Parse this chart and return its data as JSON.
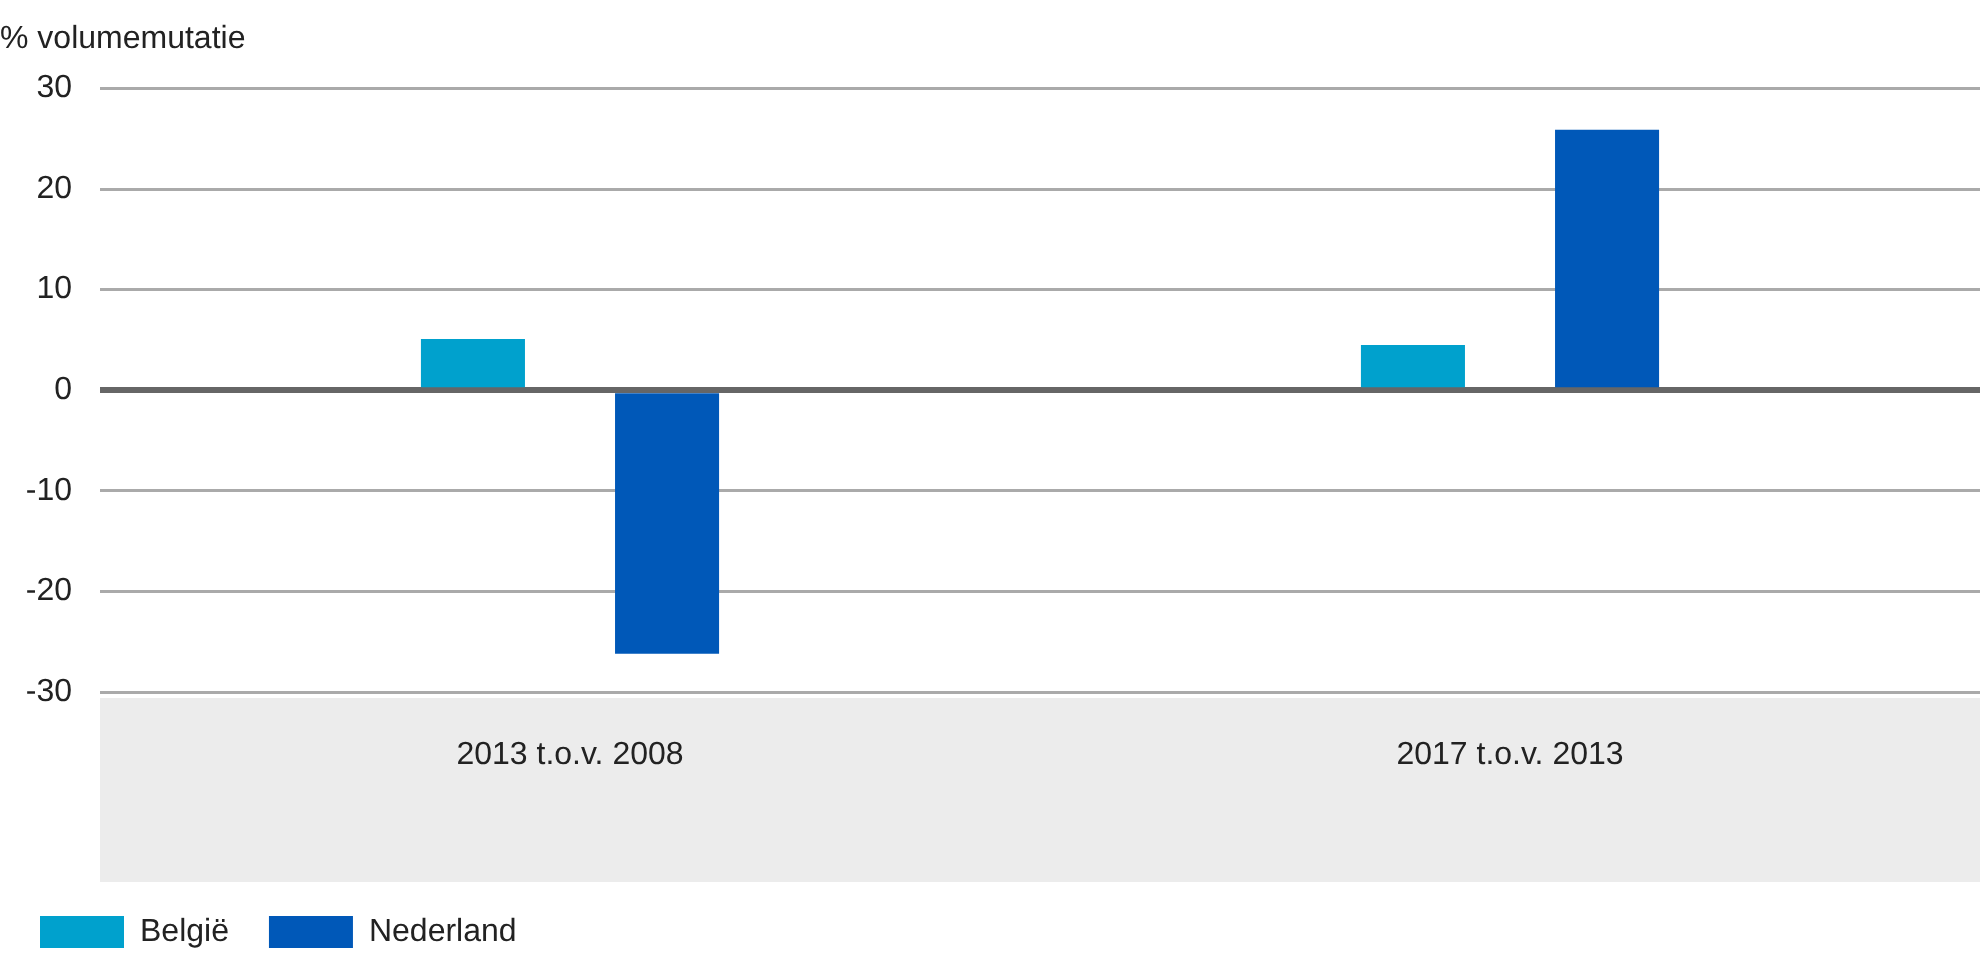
{
  "chart_data": {
    "type": "bar",
    "ylabel": "% volumemutatie",
    "categories": [
      "2013 t.o.v. 2008",
      "2017 t.o.v. 2013"
    ],
    "series": [
      {
        "name": "België",
        "color": "#00a1cd",
        "values": [
          5.1,
          4.5
        ]
      },
      {
        "name": "Nederland",
        "color": "#0058b8",
        "values": [
          -26.2,
          25.9
        ]
      }
    ],
    "ylim": [
      -30,
      30
    ],
    "yticks": [
      -30,
      -20,
      -10,
      0,
      10,
      20,
      30
    ],
    "grid": "y",
    "legend": "bottom left"
  }
}
